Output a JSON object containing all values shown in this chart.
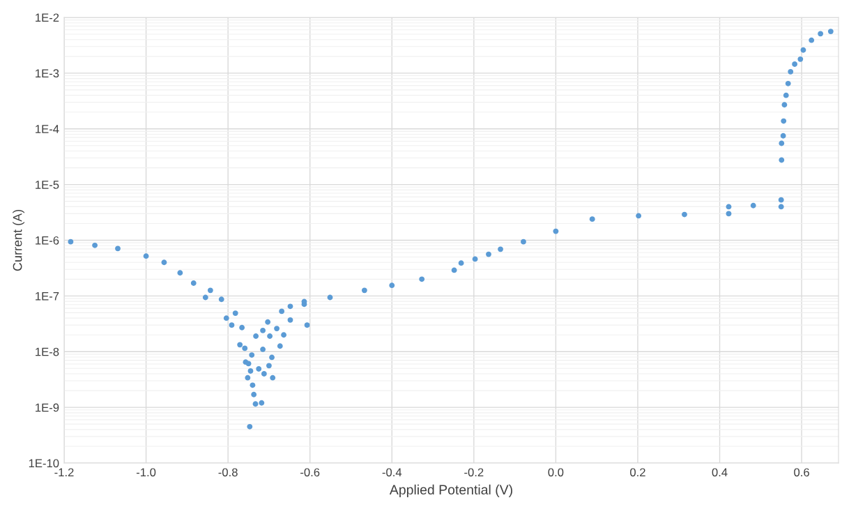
{
  "chart_data": {
    "type": "scatter",
    "xlabel": "Applied Potential (V)",
    "ylabel": "Current (A)",
    "x": [
      -1.184,
      -1.125,
      -1.069,
      -1.0,
      -0.956,
      -0.917,
      -0.884,
      -0.855,
      -0.843,
      -0.816,
      -0.804,
      -0.791,
      -0.782,
      -0.771,
      -0.766,
      -0.759,
      -0.757,
      -0.752,
      -0.75,
      -0.747,
      -0.745,
      -0.742,
      -0.74,
      -0.737,
      -0.733,
      -0.732,
      -0.725,
      -0.718,
      -0.715,
      -0.715,
      -0.712,
      -0.703,
      -0.7,
      -0.698,
      -0.693,
      -0.691,
      -0.681,
      -0.673,
      -0.669,
      -0.664,
      -0.648,
      -0.648,
      -0.614,
      -0.614,
      -0.607,
      -0.551,
      -0.467,
      -0.4,
      -0.327,
      -0.248,
      -0.231,
      -0.197,
      -0.164,
      -0.135,
      -0.079,
      0.0,
      0.089,
      0.202,
      0.314,
      0.422,
      0.422,
      0.482,
      0.55,
      0.55,
      0.551,
      0.551,
      0.555,
      0.556,
      0.558,
      0.562,
      0.567,
      0.573,
      0.583,
      0.597,
      0.604,
      0.624,
      0.646,
      0.671
    ],
    "values": [
      9.4e-07,
      8.1e-07,
      7.1e-07,
      5.2e-07,
      4e-07,
      2.6e-07,
      1.7e-07,
      9.4e-08,
      1.26e-07,
      8.7e-08,
      4e-08,
      3e-08,
      4.9e-08,
      1.33e-08,
      2.7e-08,
      1.15e-08,
      6.5e-09,
      3.4e-09,
      6.1e-09,
      4.5e-10,
      4.5e-09,
      8.7e-09,
      2.5e-09,
      1.7e-09,
      1.15e-09,
      1.9e-08,
      4.9e-09,
      1.2e-09,
      1.1e-08,
      2.4e-08,
      4e-09,
      3.4e-08,
      5.6e-09,
      1.9e-08,
      7.9e-09,
      3.4e-09,
      2.6e-08,
      1.26e-08,
      5.3e-08,
      2e-08,
      3.7e-08,
      6.5e-08,
      7.1e-08,
      7.9e-08,
      3e-08,
      9.4e-08,
      1.26e-07,
      1.55e-07,
      2e-07,
      2.9e-07,
      3.9e-07,
      4.6e-07,
      5.6e-07,
      6.9e-07,
      9.4e-07,
      1.45e-06,
      2.4e-06,
      2.75e-06,
      2.9e-06,
      3e-06,
      4e-06,
      4.2e-06,
      4e-06,
      5.3e-06,
      2.75e-05,
      5.5e-05,
      7.5e-05,
      0.000138,
      0.00027,
      0.0004,
      0.00065,
      0.00106,
      0.00145,
      0.00178,
      0.0026,
      0.0039,
      0.0051,
      0.0056
    ],
    "color": "#5b9bd5",
    "marker": "circle",
    "log": "y",
    "grid": true,
    "xlim": [
      -1.2,
      0.69
    ],
    "xticks": [
      {
        "value": -1.2,
        "label": "-1.2"
      },
      {
        "value": -1.0,
        "label": "-1.0"
      },
      {
        "value": -0.8,
        "label": "-0.8"
      },
      {
        "value": -0.6,
        "label": "-0.6"
      },
      {
        "value": -0.4,
        "label": "-0.4"
      },
      {
        "value": -0.2,
        "label": "-0.2"
      },
      {
        "value": 0,
        "label": "0.0"
      },
      {
        "value": 0.2,
        "label": "0.2"
      },
      {
        "value": 0.4,
        "label": "0.4"
      },
      {
        "value": 0.6,
        "label": "0.6"
      }
    ],
    "ylim": [
      1e-10,
      0.01
    ],
    "yticks": [
      {
        "value": 1e-10,
        "label": "1E-10"
      },
      {
        "value": 1e-09,
        "label": "1E-9"
      },
      {
        "value": 1e-08,
        "label": "1E-8"
      },
      {
        "value": 1e-07,
        "label": "1E-7"
      },
      {
        "value": 1e-06,
        "label": "1E-6"
      },
      {
        "value": 1e-05,
        "label": "1E-5"
      },
      {
        "value": 0.0001,
        "label": "1E-4"
      },
      {
        "value": 0.001,
        "label": "1E-3"
      },
      {
        "value": 0.01,
        "label": "1E-2"
      }
    ]
  }
}
